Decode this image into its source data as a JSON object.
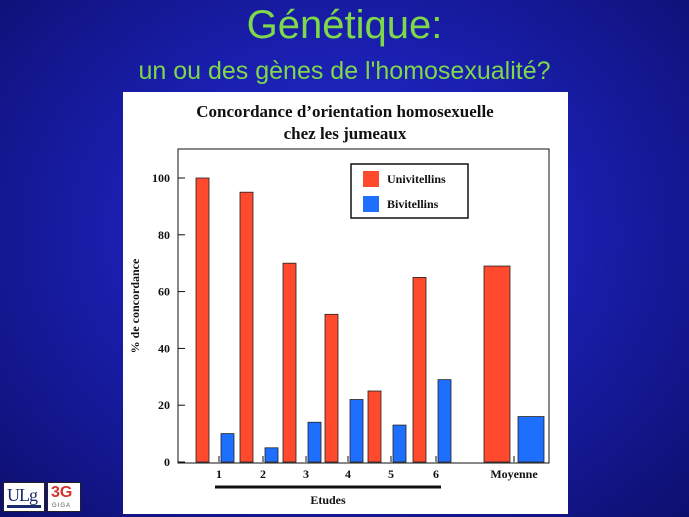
{
  "slide": {
    "title": "Génétique:",
    "subtitle": "un ou des gènes de l'homosexualité?"
  },
  "logos": {
    "left": "ULg",
    "right": "3G",
    "right_sub": "GIGA"
  },
  "colors": {
    "series1": "#ff4a2e",
    "series2": "#1f6fff",
    "title": "#7fd84a"
  },
  "chart_data": {
    "type": "bar",
    "title_line1": "Concordance d’orientation homosexuelle",
    "title_line2": "chez les jumeaux",
    "categories": [
      "1",
      "2",
      "3",
      "4",
      "5",
      "6",
      "Moyenne"
    ],
    "series": [
      {
        "name": "Univitellins",
        "values": [
          100,
          95,
          70,
          52,
          25,
          65,
          69
        ]
      },
      {
        "name": "Bivitellins",
        "values": [
          10,
          5,
          14,
          22,
          13,
          29,
          16
        ]
      }
    ],
    "xlabel": "Etudes",
    "ylabel": "% de concordance",
    "ylim": [
      0,
      100
    ],
    "yticks": [
      0,
      20,
      40,
      60,
      80,
      100
    ],
    "legend_position": "top-right",
    "grid": false
  }
}
